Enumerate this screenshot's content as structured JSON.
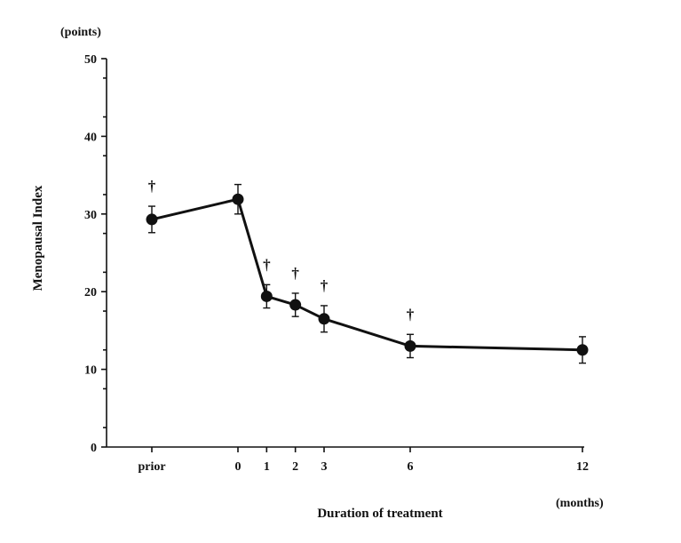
{
  "chart_data": {
    "type": "line",
    "title": "",
    "xlabel": "Duration of treatment",
    "ylabel": "Menopausal Index",
    "y_unit": "(points)",
    "x_unit": "(months)",
    "ylim": [
      0,
      50
    ],
    "yticks": [
      0,
      10,
      20,
      30,
      40,
      50
    ],
    "ytick_labels": [
      "0",
      "10",
      "20",
      "30",
      "40",
      "50"
    ],
    "x_tick_labels": [
      "prior",
      "0",
      "1",
      "2",
      "3",
      "6",
      "12"
    ],
    "x_positions": [
      -3,
      0,
      1,
      2,
      3,
      6,
      12
    ],
    "grid": false,
    "series": [
      {
        "name": "Menopausal Index",
        "x": [
          "prior",
          "0",
          "1",
          "2",
          "3",
          "6",
          "12"
        ],
        "values": [
          29.3,
          31.9,
          19.4,
          18.3,
          16.5,
          13.0,
          12.5
        ],
        "error": [
          1.7,
          1.9,
          1.5,
          1.5,
          1.7,
          1.5,
          1.7
        ]
      }
    ],
    "annotations": [
      {
        "x": "prior",
        "text": "†"
      },
      {
        "x": "1",
        "text": "†"
      },
      {
        "x": "2",
        "text": "†"
      },
      {
        "x": "3",
        "text": "†"
      },
      {
        "x": "6",
        "text": "†"
      }
    ]
  }
}
